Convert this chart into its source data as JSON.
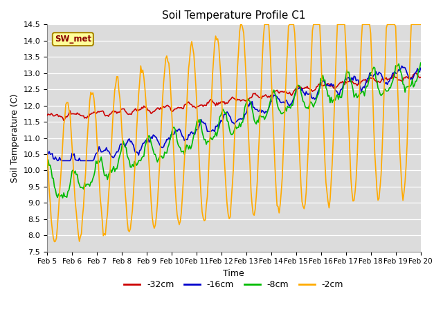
{
  "title": "Soil Temperature Profile C1",
  "xlabel": "Time",
  "ylabel": "Soil Temperature (C)",
  "ylim": [
    7.5,
    14.5
  ],
  "xlim": [
    0,
    15
  ],
  "x_tick_labels": [
    "Feb 5",
    "Feb 6",
    "Feb 7",
    "Feb 8",
    "Feb 9",
    "Feb 10",
    "Feb 11",
    "Feb 12",
    "Feb 13",
    "Feb 14",
    "Feb 15",
    "Feb 16",
    "Feb 17",
    "Feb 18",
    "Feb 19",
    "Feb 20"
  ],
  "colors": {
    "-32cm": "#cc0000",
    "-16cm": "#0000cc",
    "-8cm": "#00bb00",
    "-2cm": "#ffaa00"
  },
  "legend_label": "SW_met",
  "legend_box_color": "#ffff99",
  "legend_box_edge": "#aa8800",
  "background_color": "#dcdcdc",
  "grid_color": "#ffffff",
  "yticks": [
    7.5,
    8.0,
    8.5,
    9.0,
    9.5,
    10.0,
    10.5,
    11.0,
    11.5,
    12.0,
    12.5,
    13.0,
    13.5,
    14.0,
    14.5
  ]
}
